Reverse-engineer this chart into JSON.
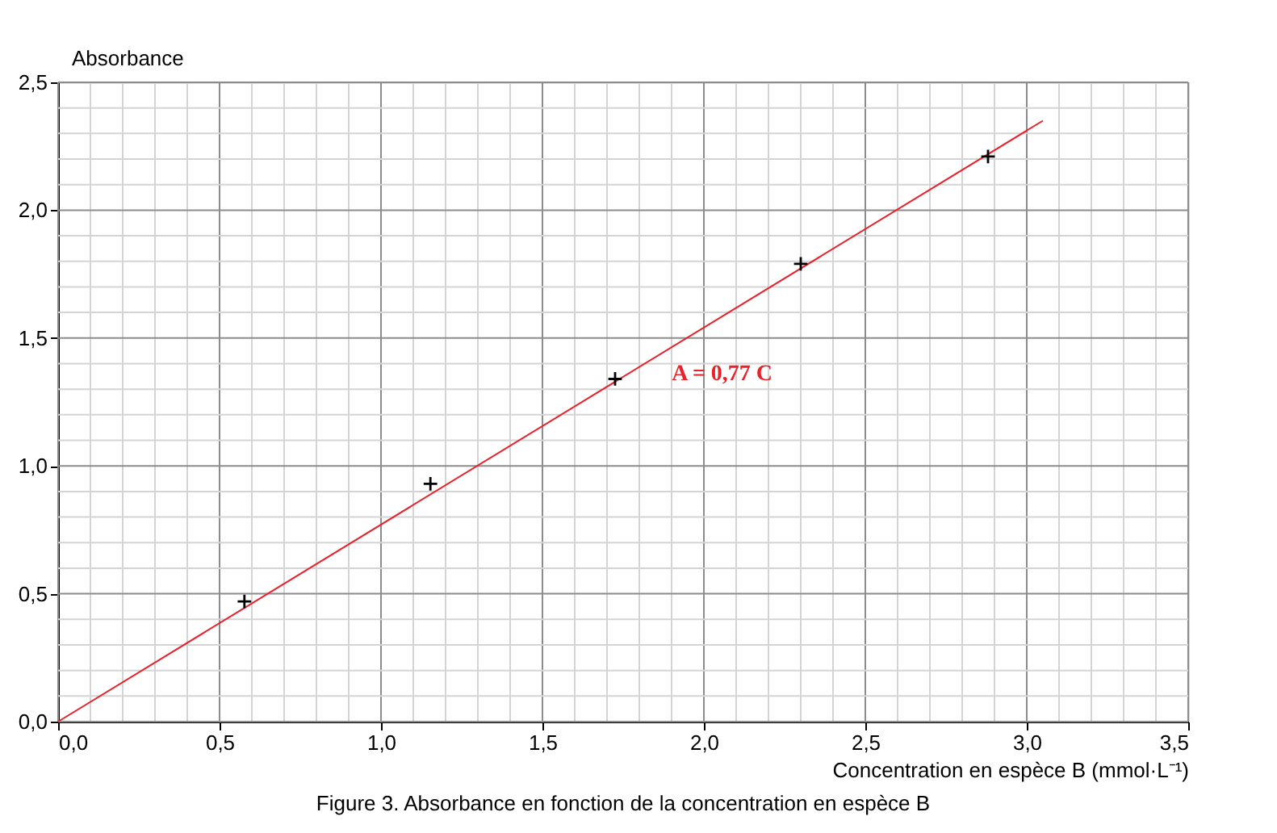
{
  "chart_data": {
    "type": "scatter",
    "xlabel": "Concentration en espèce B (mmol·L⁻¹)",
    "ylabel": "Absorbance",
    "xlim": [
      0,
      3.5
    ],
    "ylim": [
      0,
      2.5
    ],
    "xticks": [
      {
        "value": 0,
        "label": "0,0"
      },
      {
        "value": 0.1,
        "label": null
      },
      {
        "value": 0.2,
        "label": null
      },
      {
        "value": 0.3,
        "label": null
      },
      {
        "value": 0.4,
        "label": null
      },
      {
        "value": 0.5,
        "label": "0,5"
      },
      {
        "value": 0.6,
        "label": null
      },
      {
        "value": 0.7,
        "label": null
      },
      {
        "value": 0.8,
        "label": null
      },
      {
        "value": 0.9,
        "label": null
      },
      {
        "value": 1.0,
        "label": "1,0"
      },
      {
        "value": 1.1,
        "label": null
      },
      {
        "value": 1.2,
        "label": null
      },
      {
        "value": 1.3,
        "label": null
      },
      {
        "value": 1.4,
        "label": null
      },
      {
        "value": 1.5,
        "label": "1,5"
      },
      {
        "value": 1.6,
        "label": null
      },
      {
        "value": 1.7,
        "label": null
      },
      {
        "value": 1.8,
        "label": null
      },
      {
        "value": 1.9,
        "label": null
      },
      {
        "value": 2.0,
        "label": "2,0"
      },
      {
        "value": 2.1,
        "label": null
      },
      {
        "value": 2.2,
        "label": null
      },
      {
        "value": 2.3,
        "label": null
      },
      {
        "value": 2.4,
        "label": null
      },
      {
        "value": 2.5,
        "label": "2,5"
      },
      {
        "value": 2.6,
        "label": null
      },
      {
        "value": 2.7,
        "label": null
      },
      {
        "value": 2.8,
        "label": null
      },
      {
        "value": 2.9,
        "label": null
      },
      {
        "value": 3.0,
        "label": "3,0"
      },
      {
        "value": 3.1,
        "label": null
      },
      {
        "value": 3.2,
        "label": null
      },
      {
        "value": 3.3,
        "label": null
      },
      {
        "value": 3.4,
        "label": null
      },
      {
        "value": 3.5,
        "label": "3,5"
      }
    ],
    "yticks": [
      {
        "value": 0,
        "label": "0,0"
      },
      {
        "value": 0.1,
        "label": null
      },
      {
        "value": 0.2,
        "label": null
      },
      {
        "value": 0.3,
        "label": null
      },
      {
        "value": 0.4,
        "label": null
      },
      {
        "value": 0.5,
        "label": "0,5"
      },
      {
        "value": 0.6,
        "label": null
      },
      {
        "value": 0.7,
        "label": null
      },
      {
        "value": 0.8,
        "label": null
      },
      {
        "value": 0.9,
        "label": null
      },
      {
        "value": 1.0,
        "label": "1,0"
      },
      {
        "value": 1.1,
        "label": null
      },
      {
        "value": 1.2,
        "label": null
      },
      {
        "value": 1.3,
        "label": null
      },
      {
        "value": 1.4,
        "label": null
      },
      {
        "value": 1.5,
        "label": "1,5"
      },
      {
        "value": 1.6,
        "label": null
      },
      {
        "value": 1.7,
        "label": null
      },
      {
        "value": 1.8,
        "label": null
      },
      {
        "value": 1.9,
        "label": null
      },
      {
        "value": 2.0,
        "label": "2,0"
      },
      {
        "value": 2.1,
        "label": null
      },
      {
        "value": 2.2,
        "label": null
      },
      {
        "value": 2.3,
        "label": null
      },
      {
        "value": 2.4,
        "label": null
      },
      {
        "value": 2.5,
        "label": "2,5"
      }
    ],
    "grid": true,
    "series": [
      {
        "type": "scatter",
        "color": "#000000",
        "marker": "cross",
        "x": [
          0.577,
          1.153,
          1.725,
          2.3,
          2.88
        ],
        "values": [
          0.47,
          0.93,
          1.34,
          1.79,
          2.21
        ]
      },
      {
        "type": "line",
        "color": "#e8212a",
        "line_style": "solid",
        "x": [
          0,
          3.05
        ],
        "values": [
          0,
          2.35
        ]
      }
    ],
    "annotations": [
      "A = 0,77 C",
      "Figure 3. Absorbance en fonction de la concentration en espèce B"
    ]
  }
}
